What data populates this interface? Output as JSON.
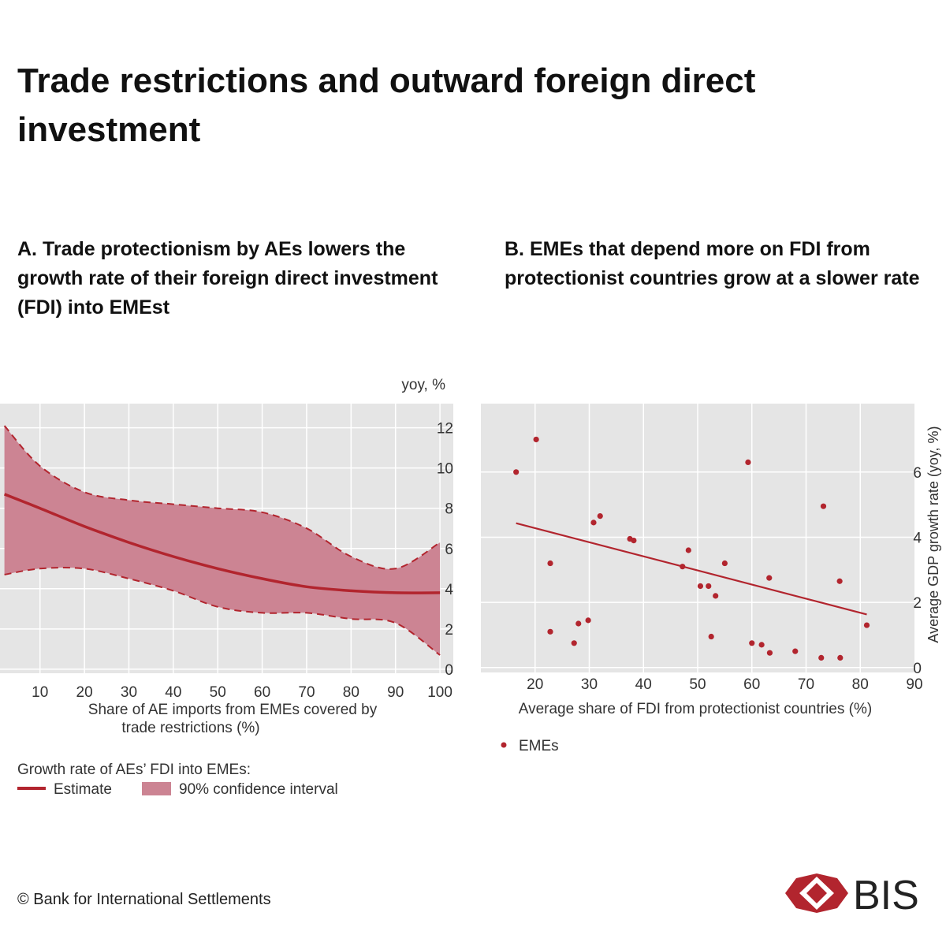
{
  "title": "Trade restrictions and outward foreign direct investment",
  "colors": {
    "accent": "#b2252e",
    "band": "#cc8493",
    "grid_bg": "#e5e5e5",
    "grid_line": "#ffffff"
  },
  "panelA": {
    "title": "A. Trade protectionism by AEs lowers the growth rate of their foreign direct investment (FDI) into EMEst",
    "unit_label": "yoy, %",
    "xlabel_line1": "Share of AE imports from EMEs covered by",
    "xlabel_line2": "trade restrictions (%)",
    "legend_title": "Growth rate of AEs’ FDI into EMEs:",
    "legend_estimate": "Estimate",
    "legend_ci": "90% confidence interval"
  },
  "panelB": {
    "title": "B. EMEs that depend more on FDI from protectionist countries grow at a slower rate",
    "ylabel": "Average GDP growth rate (yoy, %)",
    "xlabel": "Average share of FDI from protectionist countries (%)",
    "legend_points": "EMEs"
  },
  "chart_data": [
    {
      "type": "line",
      "x": [
        2,
        10,
        20,
        30,
        40,
        50,
        60,
        70,
        80,
        90,
        100
      ],
      "series": [
        {
          "name": "Estimate",
          "values": [
            8.7,
            8.0,
            7.1,
            6.3,
            5.6,
            5.0,
            4.5,
            4.1,
            3.9,
            3.8,
            3.8
          ]
        },
        {
          "name": "90% confidence interval (upper)",
          "values": [
            12.1,
            10.1,
            8.8,
            8.4,
            8.2,
            8.0,
            7.8,
            7.0,
            5.6,
            5.0,
            6.3
          ]
        },
        {
          "name": "90% confidence interval (lower)",
          "values": [
            4.7,
            5.0,
            5.0,
            4.5,
            3.9,
            3.1,
            2.8,
            2.8,
            2.5,
            2.3,
            0.7
          ]
        }
      ],
      "title": "A. Trade protectionism by AEs lowers the growth rate of their foreign direct investment (FDI) into EMEst",
      "xlabel": "Share of AE imports from EMEs covered by trade restrictions (%)",
      "ylabel": "yoy, %",
      "xlim": [
        1,
        103
      ],
      "ylim": [
        -0.2,
        13.2
      ],
      "xticks": [
        10,
        20,
        30,
        40,
        50,
        60,
        70,
        80,
        90,
        100
      ],
      "yticks": [
        0,
        2,
        4,
        6,
        8,
        10,
        12
      ],
      "grid": true,
      "legend_position": "bottom"
    },
    {
      "type": "scatter",
      "series": [
        {
          "name": "EMEs",
          "points": [
            [
              16.5,
              6.0
            ],
            [
              20.2,
              7.0
            ],
            [
              22.8,
              3.2
            ],
            [
              22.8,
              1.1
            ],
            [
              27.2,
              0.75
            ],
            [
              28.0,
              1.35
            ],
            [
              29.8,
              1.45
            ],
            [
              30.8,
              4.45
            ],
            [
              32.0,
              4.65
            ],
            [
              37.5,
              3.95
            ],
            [
              38.2,
              3.9
            ],
            [
              47.2,
              3.1
            ],
            [
              48.3,
              3.6
            ],
            [
              50.5,
              2.5
            ],
            [
              52.0,
              2.5
            ],
            [
              52.5,
              0.95
            ],
            [
              53.3,
              2.2
            ],
            [
              55.0,
              3.2
            ],
            [
              59.3,
              6.3
            ],
            [
              60.0,
              0.75
            ],
            [
              61.8,
              0.7
            ],
            [
              63.2,
              2.75
            ],
            [
              63.3,
              0.45
            ],
            [
              68.0,
              0.5
            ],
            [
              72.8,
              0.3
            ],
            [
              73.2,
              4.95
            ],
            [
              76.2,
              2.65
            ],
            [
              76.3,
              0.3
            ],
            [
              81.2,
              1.3
            ]
          ]
        }
      ],
      "trendline": {
        "x": [
          16.5,
          81.2
        ],
        "y": [
          4.43,
          1.63
        ]
      },
      "title": "B. EMEs that depend more on FDI from protectionist countries grow at a slower rate",
      "xlabel": "Average share of FDI from protectionist countries (%)",
      "ylabel": "Average GDP growth rate (yoy, %)",
      "xlim": [
        10,
        90
      ],
      "ylim": [
        -0.15,
        8.1
      ],
      "xticks": [
        20,
        30,
        40,
        50,
        60,
        70,
        80,
        90
      ],
      "yticks": [
        0,
        2,
        4,
        6
      ],
      "grid": true,
      "legend_position": "bottom-left"
    }
  ],
  "footer": "© Bank for International Settlements",
  "logo_text": "BIS"
}
